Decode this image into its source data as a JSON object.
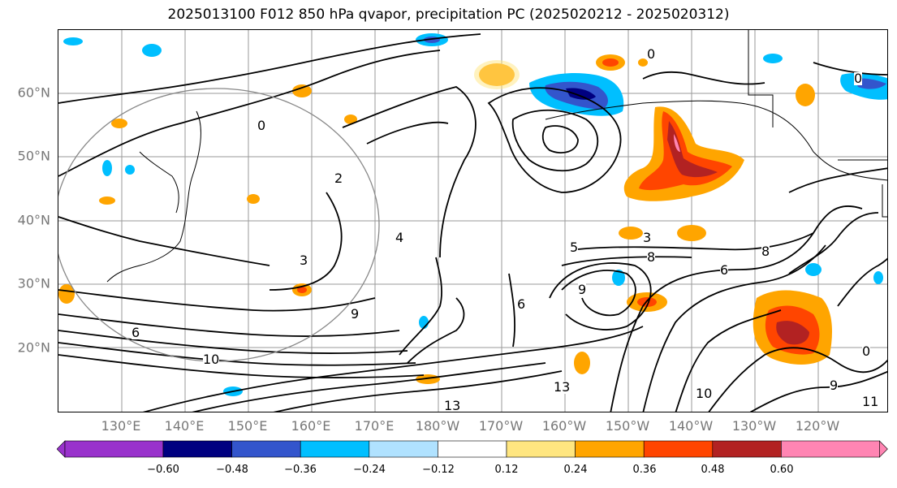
{
  "title": "2025013100 F012 850 hPa qvapor, precipitation PC (2025020212 - 2025020312)",
  "map": {
    "lat_labels": [
      "60°N",
      "50°N",
      "40°N",
      "30°N",
      "20°N"
    ],
    "lon_labels": [
      "130°E",
      "140°E",
      "150°E",
      "160°E",
      "170°E",
      "180°W",
      "170°W",
      "160°W",
      "150°W",
      "140°W",
      "130°W",
      "120°W"
    ],
    "contour_labels": [
      "0",
      "0",
      "0",
      "0",
      "2",
      "3",
      "3",
      "4",
      "5",
      "6",
      "6",
      "6",
      "8",
      "8",
      "9",
      "9",
      "9",
      "10",
      "10",
      "11",
      "13",
      "13"
    ]
  },
  "colorbar": {
    "ticks": [
      "−0.60",
      "−0.48",
      "−0.36",
      "−0.24",
      "−0.12",
      "0.12",
      "0.24",
      "0.36",
      "0.48",
      "0.60"
    ],
    "colors": [
      "#9932cc",
      "#000080",
      "#3355cc",
      "#00bfff",
      "#b0e2ff",
      "#ffffff",
      "#ffe680",
      "#ffa500",
      "#ff4500",
      "#b22222",
      "#ff85b3"
    ]
  }
}
